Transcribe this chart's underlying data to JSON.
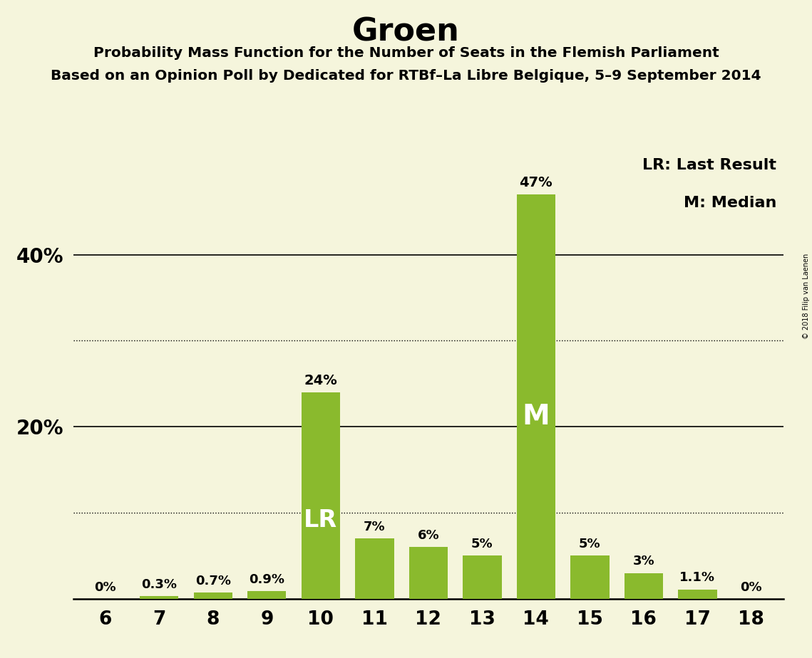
{
  "title": "Groen",
  "subtitle1": "Probability Mass Function for the Number of Seats in the Flemish Parliament",
  "subtitle2": "Based on an Opinion Poll by Dedicated for RTBf–La Libre Belgique, 5–9 September 2014",
  "copyright": "© 2018 Filip van Laenen",
  "categories": [
    6,
    7,
    8,
    9,
    10,
    11,
    12,
    13,
    14,
    15,
    16,
    17,
    18
  ],
  "values": [
    0.0,
    0.3,
    0.7,
    0.9,
    24.0,
    7.0,
    6.0,
    5.0,
    47.0,
    5.0,
    3.0,
    1.1,
    0.0
  ],
  "labels": [
    "0%",
    "0.3%",
    "0.7%",
    "0.9%",
    "24%",
    "7%",
    "6%",
    "5%",
    "47%",
    "5%",
    "3%",
    "1.1%",
    "0%"
  ],
  "bar_color": "#8aba2d",
  "background_color": "#f5f5dc",
  "last_result_seat": 10,
  "median_seat": 14,
  "lr_label": "LR",
  "m_label": "M",
  "legend_lr": "LR: Last Result",
  "legend_m": "M: Median",
  "solid_gridlines": [
    20.0,
    40.0
  ],
  "dotted_gridlines": [
    10.0,
    30.0
  ],
  "ylim": [
    0,
    52
  ]
}
